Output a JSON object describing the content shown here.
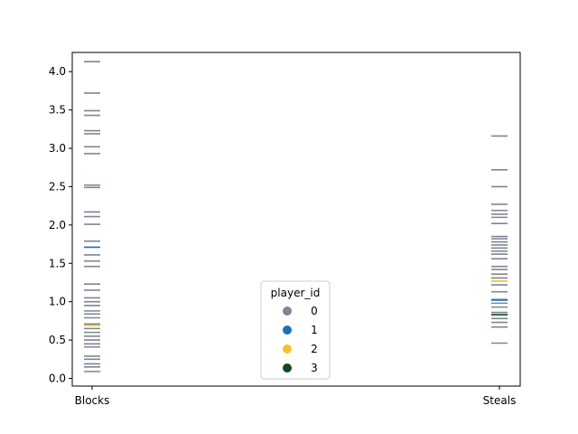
{
  "chart_data": {
    "type": "strip",
    "title": "",
    "xlabel": "",
    "ylabel": "",
    "categories": [
      "Blocks",
      "Steals"
    ],
    "ylim": [
      -0.1,
      4.25
    ],
    "yticks": [
      0.0,
      0.5,
      1.0,
      1.5,
      2.0,
      2.5,
      3.0,
      3.5,
      4.0
    ],
    "ytick_labels": [
      "0.0",
      "0.5",
      "1.0",
      "1.5",
      "2.0",
      "2.5",
      "3.0",
      "3.5",
      "4.0"
    ],
    "grid": false,
    "legend": {
      "title": "player_id",
      "placement": "lower-center",
      "entries": [
        {
          "label": "0",
          "color": "#7f8594"
        },
        {
          "label": "1",
          "color": "#1f6fb4"
        },
        {
          "label": "2",
          "color": "#f5c12c"
        },
        {
          "label": "3",
          "color": "#0f4a1c"
        }
      ]
    },
    "series": [
      {
        "name": "0",
        "color": "#7f8594",
        "values": {
          "Blocks": [
            4.13,
            3.72,
            3.49,
            3.43,
            3.23,
            3.19,
            3.02,
            2.93,
            2.52,
            2.49,
            2.17,
            2.11,
            2.01,
            1.79,
            1.61,
            1.53,
            1.46,
            1.23,
            1.15,
            1.05,
            1.0,
            0.95,
            0.88,
            0.84,
            0.79,
            0.71,
            0.65,
            0.6,
            0.55,
            0.5,
            0.45,
            0.41,
            0.29,
            0.25,
            0.19,
            0.15,
            0.09
          ],
          "Steals": [
            3.16,
            2.72,
            2.5,
            2.27,
            2.19,
            2.14,
            2.1,
            2.02,
            1.85,
            1.82,
            1.78,
            1.74,
            1.7,
            1.66,
            1.62,
            1.56,
            1.46,
            1.42,
            1.36,
            1.31,
            1.22,
            1.13,
            1.03,
            0.98,
            0.93,
            0.86,
            0.78,
            0.73,
            0.67,
            0.46
          ]
        }
      },
      {
        "name": "1",
        "color": "#1f6fb4",
        "values": {
          "Blocks": [
            1.71
          ],
          "Steals": [
            1.02
          ]
        }
      },
      {
        "name": "2",
        "color": "#f5c12c",
        "values": {
          "Blocks": [
            0.69
          ],
          "Steals": [
            1.27
          ]
        }
      },
      {
        "name": "3",
        "color": "#0f4a1c",
        "values": {
          "Blocks": [],
          "Steals": [
            0.83
          ]
        }
      }
    ]
  }
}
